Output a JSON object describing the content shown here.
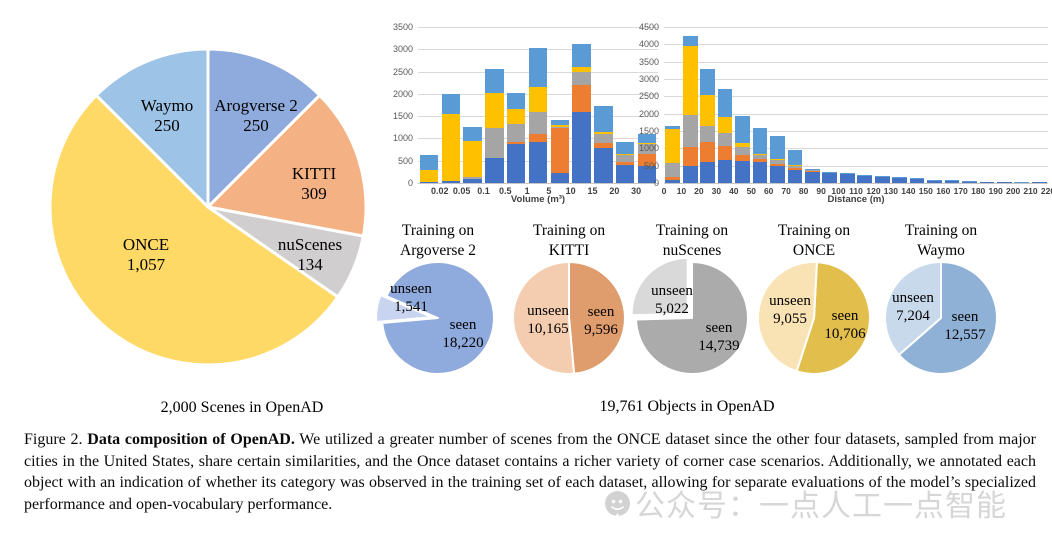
{
  "figure": {
    "scenes_caption": "2,000 Scenes in OpenAD",
    "objects_caption": "19,761 Objects in OpenAD"
  },
  "caption": {
    "prefix": "Figure 2.",
    "bold": "Data composition of OpenAD.",
    "rest": "We utilized a greater number of scenes from the ONCE dataset since the other four datasets, sampled from major cities in the United States, share certain similarities, and the Once dataset contains a richer variety of corner case scenarios.  Additionally, we annotated each object with an indication of whether its category was observed in the training set of each dataset, allowing for separate evaluations of the model’s specialized performance and open-vocabulary performance."
  },
  "watermark": {
    "icon": "wechat-official-account-icon",
    "text": "公众号：一点人工一点智能",
    "color": "#c9c9c9"
  },
  "chart_data": [
    {
      "id": "scenes_pie",
      "type": "pie",
      "title": "2,000 Scenes in OpenAD",
      "total": 2000,
      "start_angle_deg": 0,
      "slices": [
        {
          "label": "Arogverse 2",
          "value": 250,
          "value_label": "250",
          "color": "#8FAADC"
        },
        {
          "label": "KITTI",
          "value": 309,
          "value_label": "309",
          "color": "#F4B183"
        },
        {
          "label": "nuScenes",
          "value": 134,
          "value_label": "134",
          "color": "#D0CECE"
        },
        {
          "label": "ONCE",
          "value": 1057,
          "value_label": "1,057",
          "color": "#FFD966"
        },
        {
          "label": "Waymo",
          "value": 250,
          "value_label": "250",
          "color": "#9DC3E6"
        }
      ]
    },
    {
      "id": "volume_hist",
      "type": "bar",
      "stacked": true,
      "xlabel": "Volume (m³)",
      "ylim": [
        0,
        3500
      ],
      "ytick_step": 500,
      "grid": true,
      "x_edge_labels": [
        "0.02",
        "0.05",
        "0.1",
        "0.5",
        "1",
        "5",
        "10",
        "15",
        "20",
        "30"
      ],
      "edge_label_mode": "inner",
      "series": [
        {
          "name": "blue",
          "color": "#4472C4",
          "values": [
            30,
            50,
            80,
            570,
            880,
            910,
            230,
            1600,
            780,
            400,
            390
          ]
        },
        {
          "name": "orange",
          "color": "#ED7D31",
          "values": [
            0,
            0,
            0,
            0,
            30,
            200,
            1000,
            610,
            110,
            80,
            260
          ]
        },
        {
          "name": "gray",
          "color": "#A5A5A5",
          "values": [
            0,
            0,
            60,
            670,
            420,
            480,
            30,
            290,
            210,
            140,
            220
          ]
        },
        {
          "name": "yellow",
          "color": "#FFC000",
          "values": [
            270,
            1500,
            810,
            770,
            320,
            570,
            50,
            110,
            40,
            40,
            30
          ]
        },
        {
          "name": "light-blue",
          "color": "#5B9BD5",
          "values": [
            340,
            450,
            310,
            540,
            360,
            870,
            100,
            520,
            590,
            260,
            190
          ]
        }
      ]
    },
    {
      "id": "distance_hist",
      "type": "bar",
      "stacked": true,
      "xlabel": "Distance (m)",
      "ylim": [
        0,
        4500
      ],
      "ytick_step": 500,
      "grid": true,
      "x_edge_labels": [
        "0",
        "10",
        "20",
        "30",
        "40",
        "50",
        "60",
        "70",
        "80",
        "90",
        "100",
        "110",
        "120",
        "130",
        "140",
        "150",
        "160",
        "170",
        "180",
        "190",
        "200",
        "210",
        "220"
      ],
      "edge_label_mode": "all",
      "series": [
        {
          "name": "blue",
          "color": "#4472C4",
          "values": [
            80,
            480,
            620,
            670,
            640,
            620,
            500,
            380,
            320,
            300,
            260,
            220,
            190,
            150,
            140,
            75,
            85,
            55,
            40,
            30,
            25,
            15
          ]
        },
        {
          "name": "orange",
          "color": "#ED7D31",
          "values": [
            90,
            570,
            560,
            400,
            160,
            80,
            60,
            50,
            20,
            0,
            0,
            0,
            0,
            0,
            0,
            0,
            0,
            0,
            0,
            0,
            0,
            0
          ]
        },
        {
          "name": "gray",
          "color": "#A5A5A5",
          "values": [
            410,
            900,
            470,
            380,
            250,
            100,
            90,
            70,
            30,
            10,
            0,
            0,
            0,
            0,
            0,
            0,
            0,
            0,
            0,
            0,
            0,
            0
          ]
        },
        {
          "name": "yellow",
          "color": "#FFC000",
          "values": [
            990,
            2000,
            900,
            450,
            100,
            40,
            30,
            20,
            0,
            0,
            0,
            0,
            0,
            0,
            0,
            0,
            0,
            0,
            0,
            0,
            0,
            0
          ]
        },
        {
          "name": "light-blue",
          "color": "#5B9BD5",
          "values": [
            80,
            300,
            750,
            800,
            780,
            760,
            670,
            430,
            30,
            20,
            20,
            10,
            10,
            10,
            10,
            5,
            5,
            5,
            0,
            0,
            5,
            0
          ]
        }
      ]
    },
    {
      "id": "training_argoverse2",
      "type": "pie",
      "title_lines": [
        "Training on",
        "Argoverse 2"
      ],
      "start_angle_deg": -67,
      "slices": [
        {
          "label": "seen",
          "value": 18220,
          "value_label": "18,220",
          "color": "#8FAADC"
        },
        {
          "label": "unseen",
          "value": 1541,
          "value_label": "1,541",
          "color": "#C9D5F0",
          "exploded": true
        }
      ]
    },
    {
      "id": "training_kitti",
      "type": "pie",
      "title_lines": [
        "Training on",
        "KITTI"
      ],
      "start_angle_deg": 0,
      "slices": [
        {
          "label": "seen",
          "value": 9596,
          "value_label": "9,596",
          "color": "#DF9D6E"
        },
        {
          "label": "unseen",
          "value": 10165,
          "value_label": "10,165",
          "color": "#F4CDB0"
        }
      ]
    },
    {
      "id": "training_nuscenes",
      "type": "pie",
      "title_lines": [
        "Training on",
        "nuScenes"
      ],
      "start_angle_deg": 0,
      "slices": [
        {
          "label": "seen",
          "value": 14739,
          "value_label": "14,739",
          "color": "#ACABAB"
        },
        {
          "label": "unseen",
          "value": 5022,
          "value_label": "5,022",
          "color": "#D9D9D9",
          "exploded": true
        }
      ]
    },
    {
      "id": "training_once",
      "type": "pie",
      "title_lines": [
        "Training on",
        "ONCE"
      ],
      "start_angle_deg": 3,
      "slices": [
        {
          "label": "seen",
          "value": 10706,
          "value_label": "10,706",
          "color": "#E2BE4D"
        },
        {
          "label": "unseen",
          "value": 9055,
          "value_label": "9,055",
          "color": "#F9E2B3"
        }
      ]
    },
    {
      "id": "training_waymo",
      "type": "pie",
      "title_lines": [
        "Training on",
        "Waymo"
      ],
      "start_angle_deg": 0,
      "slices": [
        {
          "label": "seen",
          "value": 12557,
          "value_label": "12,557",
          "color": "#8FB1D5"
        },
        {
          "label": "unseen",
          "value": 7204,
          "value_label": "7,204",
          "color": "#C9D9EC"
        }
      ]
    }
  ]
}
